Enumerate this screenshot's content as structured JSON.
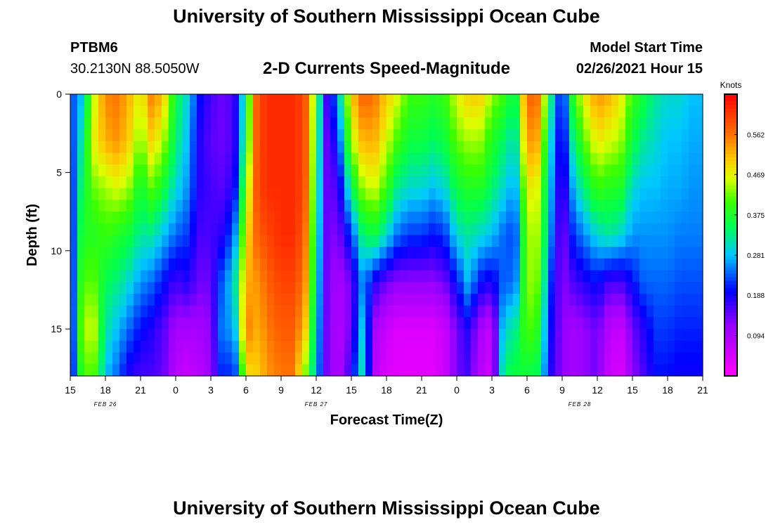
{
  "header": {
    "title": "University of Southern Mississippi Ocean Cube",
    "station_id": "PTBM6",
    "coordinates": "30.2130N 88.5050W",
    "subtitle": "2-D Currents Speed-Magnitude",
    "model_start_label": "Model Start Time",
    "model_start_value": "02/26/2021 Hour 15"
  },
  "footer": {
    "title": "University of Southern Mississippi Ocean Cube"
  },
  "chart_data": {
    "type": "heatmap",
    "xlabel": "Forecast Time(Z)",
    "ylabel": "Depth (ft)",
    "x_start_hour": 15,
    "x_hours_total": 54,
    "x_tick_labels": [
      "15",
      "18",
      "21",
      "0",
      "3",
      "6",
      "9",
      "12",
      "15",
      "18",
      "21",
      "0",
      "3",
      "6",
      "9",
      "12",
      "15",
      "18",
      "21"
    ],
    "date_labels": [
      {
        "text": "FEB 26",
        "at_tick": 1
      },
      {
        "text": "FEB 27",
        "at_tick": 7
      },
      {
        "text": "FEB 28",
        "at_tick": 14.5
      }
    ],
    "ylim": [
      0,
      18
    ],
    "y_ticks": [
      0,
      5,
      10,
      15
    ],
    "y_tick_labels": [
      "0",
      "5",
      "10",
      "15"
    ],
    "colorbar": {
      "units": "Knots",
      "vmin": 0.0,
      "vmax": 0.656,
      "ticks": [
        0.094,
        0.188,
        0.281,
        0.375,
        0.469,
        0.562
      ],
      "tick_labels": [
        "0.094",
        "0.188",
        "0.281",
        "0.375",
        "0.469",
        "0.562"
      ]
    },
    "depths_ft": [
      0,
      3,
      6,
      9,
      12,
      15,
      18
    ],
    "hours": [
      15,
      16,
      17,
      18,
      19,
      20,
      21,
      22,
      23,
      24,
      25,
      26,
      27,
      28,
      29,
      30,
      31,
      32,
      33,
      34,
      35,
      36,
      37,
      38,
      39,
      40,
      41,
      42,
      43,
      44,
      45,
      46,
      47,
      48,
      49,
      50,
      51,
      52,
      53,
      54,
      55,
      56,
      57,
      58,
      59,
      60,
      61,
      62,
      63,
      64,
      65,
      66,
      67,
      68,
      69
    ],
    "columns": [
      [
        0.22,
        0.2,
        0.18,
        0.17,
        0.16,
        0.15,
        0.15
      ],
      [
        0.28,
        0.32,
        0.35,
        0.38,
        0.41,
        0.44,
        0.4
      ],
      [
        0.45,
        0.47,
        0.42,
        0.38,
        0.42,
        0.46,
        0.42
      ],
      [
        0.55,
        0.52,
        0.44,
        0.4,
        0.35,
        0.32,
        0.28
      ],
      [
        0.56,
        0.54,
        0.46,
        0.38,
        0.33,
        0.28,
        0.24
      ],
      [
        0.52,
        0.5,
        0.44,
        0.36,
        0.3,
        0.24,
        0.18
      ],
      [
        0.46,
        0.42,
        0.36,
        0.32,
        0.26,
        0.2,
        0.16
      ],
      [
        0.56,
        0.5,
        0.42,
        0.32,
        0.24,
        0.18,
        0.16
      ],
      [
        0.5,
        0.44,
        0.36,
        0.28,
        0.2,
        0.15,
        0.14
      ],
      [
        0.36,
        0.34,
        0.3,
        0.24,
        0.16,
        0.1,
        0.08
      ],
      [
        0.3,
        0.28,
        0.26,
        0.22,
        0.18,
        0.1,
        0.06
      ],
      [
        0.2,
        0.18,
        0.18,
        0.16,
        0.14,
        0.1,
        0.08
      ],
      [
        0.16,
        0.15,
        0.16,
        0.16,
        0.14,
        0.12,
        0.11
      ],
      [
        0.14,
        0.14,
        0.15,
        0.18,
        0.24,
        0.26,
        0.22
      ],
      [
        0.16,
        0.16,
        0.18,
        0.24,
        0.3,
        0.26,
        0.2
      ],
      [
        0.34,
        0.36,
        0.42,
        0.48,
        0.52,
        0.56,
        0.48
      ],
      [
        0.6,
        0.6,
        0.6,
        0.58,
        0.54,
        0.52,
        0.5
      ],
      [
        0.62,
        0.62,
        0.62,
        0.6,
        0.58,
        0.56,
        0.54
      ],
      [
        0.62,
        0.62,
        0.62,
        0.62,
        0.6,
        0.58,
        0.56
      ],
      [
        0.62,
        0.62,
        0.62,
        0.62,
        0.6,
        0.58,
        0.56
      ],
      [
        0.6,
        0.6,
        0.6,
        0.58,
        0.56,
        0.52,
        0.44
      ],
      [
        0.4,
        0.38,
        0.36,
        0.34,
        0.32,
        0.3,
        0.28
      ],
      [
        0.14,
        0.12,
        0.12,
        0.12,
        0.12,
        0.12,
        0.12
      ],
      [
        0.3,
        0.24,
        0.18,
        0.14,
        0.1,
        0.09,
        0.09
      ],
      [
        0.5,
        0.44,
        0.34,
        0.22,
        0.14,
        0.14,
        0.18
      ],
      [
        0.58,
        0.52,
        0.44,
        0.34,
        0.26,
        0.3,
        0.32
      ],
      [
        0.56,
        0.52,
        0.46,
        0.36,
        0.18,
        0.1,
        0.08
      ],
      [
        0.5,
        0.46,
        0.4,
        0.3,
        0.14,
        0.06,
        0.04
      ],
      [
        0.46,
        0.4,
        0.32,
        0.24,
        0.12,
        0.04,
        0.03
      ],
      [
        0.4,
        0.36,
        0.3,
        0.22,
        0.12,
        0.04,
        0.03
      ],
      [
        0.4,
        0.36,
        0.3,
        0.22,
        0.12,
        0.04,
        0.03
      ],
      [
        0.38,
        0.34,
        0.28,
        0.2,
        0.12,
        0.04,
        0.03
      ],
      [
        0.4,
        0.36,
        0.3,
        0.22,
        0.14,
        0.06,
        0.06
      ],
      [
        0.46,
        0.42,
        0.36,
        0.3,
        0.2,
        0.14,
        0.14
      ],
      [
        0.5,
        0.44,
        0.38,
        0.32,
        0.28,
        0.18,
        0.16
      ],
      [
        0.5,
        0.44,
        0.38,
        0.3,
        0.2,
        0.1,
        0.08
      ],
      [
        0.44,
        0.38,
        0.34,
        0.28,
        0.18,
        0.06,
        0.05
      ],
      [
        0.4,
        0.34,
        0.3,
        0.24,
        0.24,
        0.3,
        0.34
      ],
      [
        0.34,
        0.3,
        0.26,
        0.22,
        0.24,
        0.32,
        0.36
      ],
      [
        0.58,
        0.54,
        0.48,
        0.44,
        0.44,
        0.42,
        0.36
      ],
      [
        0.56,
        0.52,
        0.46,
        0.44,
        0.42,
        0.38,
        0.34
      ],
      [
        0.34,
        0.3,
        0.28,
        0.26,
        0.22,
        0.2,
        0.18
      ],
      [
        0.18,
        0.16,
        0.14,
        0.12,
        0.12,
        0.12,
        0.12
      ],
      [
        0.4,
        0.34,
        0.28,
        0.22,
        0.16,
        0.1,
        0.1
      ],
      [
        0.48,
        0.42,
        0.34,
        0.26,
        0.18,
        0.12,
        0.12
      ],
      [
        0.54,
        0.48,
        0.4,
        0.3,
        0.2,
        0.14,
        0.14
      ],
      [
        0.52,
        0.46,
        0.38,
        0.32,
        0.16,
        0.08,
        0.06
      ],
      [
        0.48,
        0.44,
        0.38,
        0.3,
        0.16,
        0.06,
        0.04
      ],
      [
        0.4,
        0.36,
        0.3,
        0.26,
        0.2,
        0.14,
        0.12
      ],
      [
        0.36,
        0.32,
        0.28,
        0.26,
        0.24,
        0.18,
        0.16
      ],
      [
        0.32,
        0.3,
        0.28,
        0.26,
        0.24,
        0.22,
        0.2
      ],
      [
        0.3,
        0.28,
        0.27,
        0.26,
        0.24,
        0.22,
        0.2
      ],
      [
        0.3,
        0.28,
        0.27,
        0.25,
        0.23,
        0.21,
        0.19
      ],
      [
        0.28,
        0.27,
        0.26,
        0.25,
        0.23,
        0.21,
        0.19
      ],
      [
        0.28,
        0.27,
        0.26,
        0.25,
        0.23,
        0.21,
        0.19
      ]
    ]
  }
}
